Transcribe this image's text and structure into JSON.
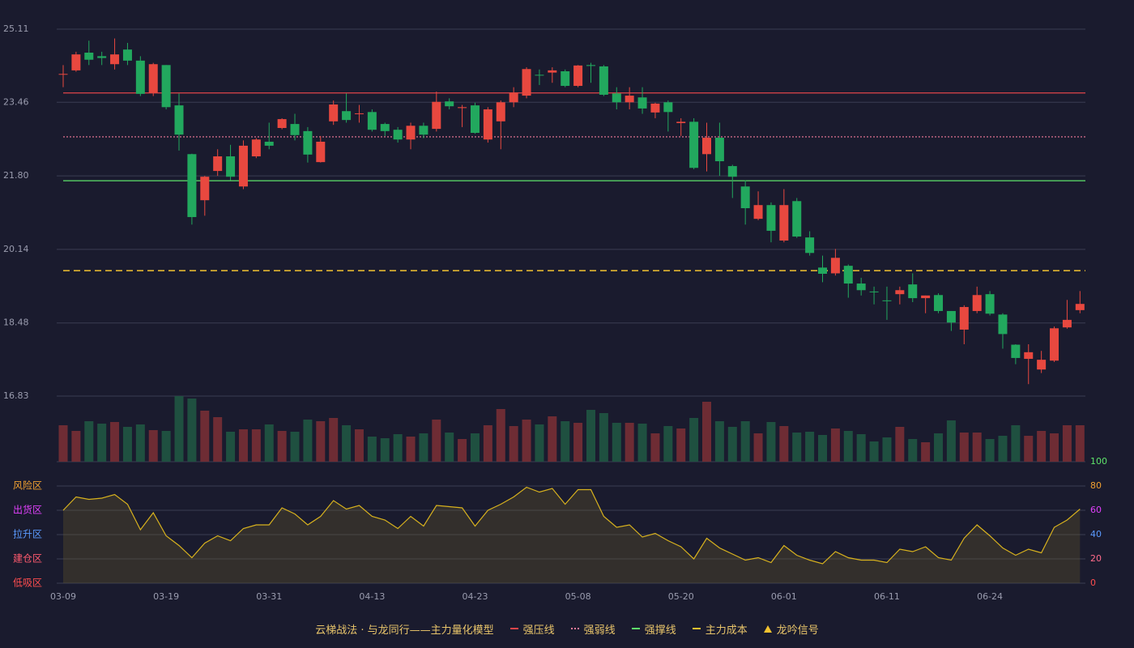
{
  "chart_data": [
    {
      "type": "candlestick",
      "open": [
        24.1,
        24.18,
        24.58,
        24.5,
        24.32,
        24.65,
        24.4,
        23.67,
        24.3,
        23.39,
        22.29,
        21.25,
        21.91,
        22.24,
        21.56,
        22.24,
        22.57,
        22.88,
        22.97,
        22.81,
        22.11,
        23.03,
        23.26,
        23.2,
        23.24,
        22.97,
        22.84,
        22.62,
        22.93,
        22.86,
        23.48,
        23.33,
        23.39,
        22.62,
        23.03,
        23.46,
        23.61,
        24.08,
        24.13,
        24.16,
        23.83,
        24.3,
        24.27,
        23.66,
        23.46,
        23.57,
        23.23,
        23.46,
        22.99,
        23.02,
        22.29,
        22.66,
        22.02,
        21.56,
        20.83,
        21.14,
        20.34,
        21.23,
        20.41,
        19.73,
        19.6,
        19.77,
        19.37,
        19.19,
        18.99,
        19.13,
        19.35,
        19.04,
        19.11,
        18.75,
        18.33,
        18.75,
        19.13,
        18.67,
        17.99,
        17.67,
        17.43,
        17.63,
        18.38,
        18.77
      ],
      "close": [
        24.1,
        24.54,
        24.42,
        24.46,
        24.54,
        24.4,
        23.65,
        24.32,
        23.35,
        22.73,
        20.87,
        21.78,
        22.24,
        21.78,
        22.48,
        22.62,
        22.48,
        23.08,
        22.72,
        22.28,
        22.57,
        23.41,
        23.06,
        23.21,
        22.84,
        22.81,
        22.62,
        22.93,
        22.73,
        23.47,
        23.37,
        23.35,
        22.77,
        23.3,
        23.46,
        23.68,
        24.21,
        24.07,
        24.18,
        23.83,
        24.29,
        24.28,
        23.63,
        23.46,
        23.61,
        23.32,
        23.43,
        23.24,
        23.02,
        21.98,
        22.66,
        22.13,
        21.78,
        21.07,
        21.14,
        20.56,
        21.14,
        20.43,
        20.06,
        19.59,
        19.95,
        19.37,
        19.22,
        19.18,
        18.98,
        19.22,
        19.04,
        19.1,
        18.75,
        18.49,
        18.84,
        19.11,
        18.69,
        18.23,
        17.69,
        17.82,
        17.65,
        18.36,
        18.55,
        18.91
      ],
      "high": [
        24.3,
        24.6,
        24.85,
        24.6,
        24.9,
        24.8,
        24.5,
        24.35,
        24.3,
        23.66,
        22.3,
        21.8,
        22.4,
        22.5,
        22.6,
        22.65,
        23.0,
        23.1,
        23.2,
        22.9,
        22.7,
        23.5,
        23.66,
        23.4,
        23.3,
        23.0,
        22.9,
        23.0,
        23.0,
        23.7,
        23.55,
        23.4,
        23.45,
        23.35,
        23.5,
        23.8,
        24.25,
        24.2,
        24.25,
        24.2,
        24.3,
        24.35,
        24.3,
        23.8,
        23.8,
        23.8,
        23.45,
        23.5,
        23.1,
        23.1,
        23.0,
        23.0,
        22.05,
        21.7,
        21.45,
        21.2,
        21.5,
        21.3,
        20.55,
        20.0,
        20.15,
        19.8,
        19.5,
        19.3,
        19.3,
        19.3,
        19.6,
        19.1,
        19.15,
        18.75,
        18.88,
        19.3,
        19.2,
        18.7,
        18.0,
        18.0,
        17.85,
        18.4,
        19.0,
        19.2
      ],
      "low": [
        23.8,
        24.15,
        24.3,
        24.3,
        24.2,
        24.3,
        23.6,
        23.6,
        23.3,
        22.37,
        20.7,
        20.9,
        21.8,
        21.7,
        21.5,
        22.2,
        22.4,
        22.85,
        22.6,
        22.1,
        22.1,
        22.95,
        23.0,
        23.0,
        22.8,
        22.7,
        22.55,
        22.4,
        22.65,
        22.8,
        23.3,
        22.9,
        22.75,
        22.55,
        22.4,
        23.35,
        23.55,
        23.85,
        23.9,
        23.8,
        23.8,
        23.9,
        23.6,
        23.3,
        23.3,
        23.2,
        23.1,
        22.8,
        22.7,
        21.95,
        21.9,
        21.8,
        21.3,
        20.7,
        20.8,
        20.3,
        20.3,
        20.4,
        20.0,
        19.4,
        19.55,
        19.05,
        19.1,
        18.9,
        18.55,
        18.9,
        18.95,
        18.7,
        18.7,
        18.3,
        18.0,
        18.7,
        18.65,
        17.9,
        17.55,
        17.1,
        17.35,
        17.6,
        18.35,
        18.7
      ],
      "up_color": "#e8483f",
      "down_color": "#22a85e",
      "ylim": [
        16.83,
        25.11
      ],
      "yticks": [
        16.83,
        18.48,
        20.14,
        {
          "value": 21.8,
          "label": "21.80"
        },
        23.46,
        25.11
      ],
      "grid": true,
      "lines": [
        {
          "name": "强压线",
          "value": 23.67,
          "color": "#e0454a",
          "style": "solid"
        },
        {
          "name": "强弱线",
          "value": 22.68,
          "color": "#f27a9a",
          "style": "dotted"
        },
        {
          "name": "强撑线",
          "value": 21.69,
          "color": "#5ee36a",
          "style": "solid"
        },
        {
          "name": "主力成本",
          "value": 19.66,
          "color": "#f2c230",
          "style": "dashed"
        }
      ],
      "signal": {
        "name": "龙吟信号",
        "color": "#f2c230"
      },
      "legend_title": "云梯战法 · 与龙同行——主力量化模型"
    },
    {
      "type": "bar",
      "values": [
        45,
        38,
        50,
        47,
        49,
        43,
        46,
        39,
        38,
        81,
        78,
        63,
        55,
        37,
        40,
        40,
        46,
        38,
        37,
        52,
        50,
        54,
        45,
        40,
        31,
        29,
        34,
        31,
        35,
        52,
        36,
        28,
        35,
        45,
        65,
        44,
        52,
        46,
        56,
        50,
        48,
        64,
        60,
        48,
        48,
        47,
        35,
        44,
        41,
        54,
        74,
        50,
        43,
        50,
        35,
        49,
        44,
        36,
        37,
        33,
        41,
        38,
        34,
        25,
        30,
        43,
        28,
        24,
        35,
        51,
        36,
        36,
        28,
        32,
        45,
        32,
        38,
        35,
        45,
        45
      ],
      "up_color": "#6e2c34",
      "down_color": "#1f5040"
    },
    {
      "type": "line",
      "categories": [
        "03-09",
        null,
        null,
        null,
        null,
        null,
        null,
        null,
        "03-19",
        null,
        null,
        null,
        null,
        null,
        null,
        null,
        "03-31",
        null,
        null,
        null,
        null,
        null,
        null,
        null,
        "04-13",
        null,
        null,
        null,
        null,
        null,
        null,
        null,
        "04-23",
        null,
        null,
        null,
        null,
        null,
        null,
        null,
        "05-08",
        null,
        null,
        null,
        null,
        null,
        null,
        null,
        "05-20",
        null,
        null,
        null,
        null,
        null,
        null,
        null,
        "06-01",
        null,
        null,
        null,
        null,
        null,
        null,
        null,
        "06-11",
        null,
        null,
        null,
        null,
        null,
        null,
        null,
        "06-24",
        null,
        null,
        null,
        null,
        null,
        null,
        null
      ],
      "values": [
        60,
        71,
        69,
        70,
        73,
        65,
        44,
        58,
        39,
        31,
        21,
        33,
        39,
        35,
        45,
        48,
        48,
        62,
        57,
        48,
        55,
        68,
        61,
        64,
        55,
        52,
        45,
        55,
        47,
        64,
        63,
        62,
        47,
        60,
        65,
        71,
        79,
        75,
        78,
        65,
        77,
        77,
        55,
        46,
        48,
        38,
        41,
        35,
        30,
        20,
        37,
        29,
        24,
        19,
        21,
        17,
        31,
        23,
        19,
        16,
        26,
        21,
        19,
        19,
        17,
        28,
        26,
        30,
        21,
        19,
        37,
        48,
        39,
        29,
        23,
        28,
        25,
        46,
        52,
        61
      ],
      "color": "#d8b21e",
      "area": true,
      "ylim": [
        0,
        100
      ],
      "yticks": [
        0,
        20,
        40,
        60,
        80,
        100
      ],
      "ytick_colors": [
        "#ff4d4f",
        "#ff6b8a",
        "#5b9bff",
        "#e040fb",
        "#f0a030",
        "#5ee36a"
      ],
      "zones": [
        {
          "label": "风险区",
          "value": 80,
          "color": "#f0a030"
        },
        {
          "label": "出货区",
          "value": 60,
          "color": "#e040fb"
        },
        {
          "label": "拉升区",
          "value": 40,
          "color": "#5b9bff"
        },
        {
          "label": "建仓区",
          "value": 20,
          "color": "#ff5a6e"
        },
        {
          "label": "低吸区",
          "value": 0,
          "color": "#ff4d4f"
        }
      ]
    }
  ]
}
